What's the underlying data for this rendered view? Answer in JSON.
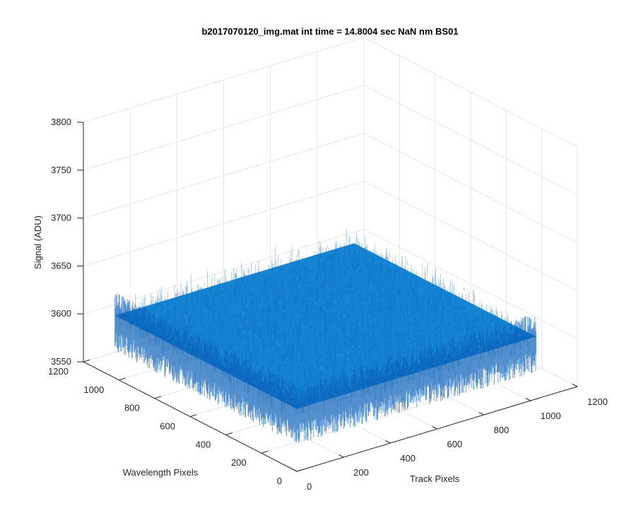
{
  "chart_data": {
    "type": "surface",
    "title": "b2017070120_img.mat int time = 14.8004 sec  NaN nm BS01",
    "xlabel": "Track Pixels",
    "ylabel": "Wavelength Pixels",
    "zlabel": "Signal (ADU)",
    "xlim": [
      0,
      1200
    ],
    "ylim": [
      0,
      1200
    ],
    "zlim": [
      3550,
      3800
    ],
    "x_ticks": [
      0,
      200,
      400,
      600,
      800,
      1000,
      1200
    ],
    "y_ticks": [
      0,
      200,
      400,
      600,
      800,
      1000,
      1200
    ],
    "z_ticks": [
      3550,
      3600,
      3650,
      3700,
      3750,
      3800
    ],
    "x_tick_labels": [
      "0",
      "200",
      "400",
      "600",
      "800",
      "1000",
      "1200"
    ],
    "y_tick_labels": [
      "0",
      "200",
      "400",
      "600",
      "800",
      "1000",
      "1200"
    ],
    "z_tick_labels": [
      "3550",
      "3600",
      "3650",
      "3700",
      "3750",
      "3800"
    ],
    "surface_extent": {
      "x": [
        1,
        1024
      ],
      "y": [
        1,
        1024
      ]
    },
    "surface_mean": 3615,
    "surface_noise_range": [
      3590,
      3640
    ],
    "colormap": [
      "#0a5fb8",
      "#0d72c9",
      "#1a86d4",
      "#2899dc",
      "#3aaee6"
    ],
    "grid": true,
    "view": {
      "azimuth": -37.5,
      "elevation": 30
    }
  }
}
